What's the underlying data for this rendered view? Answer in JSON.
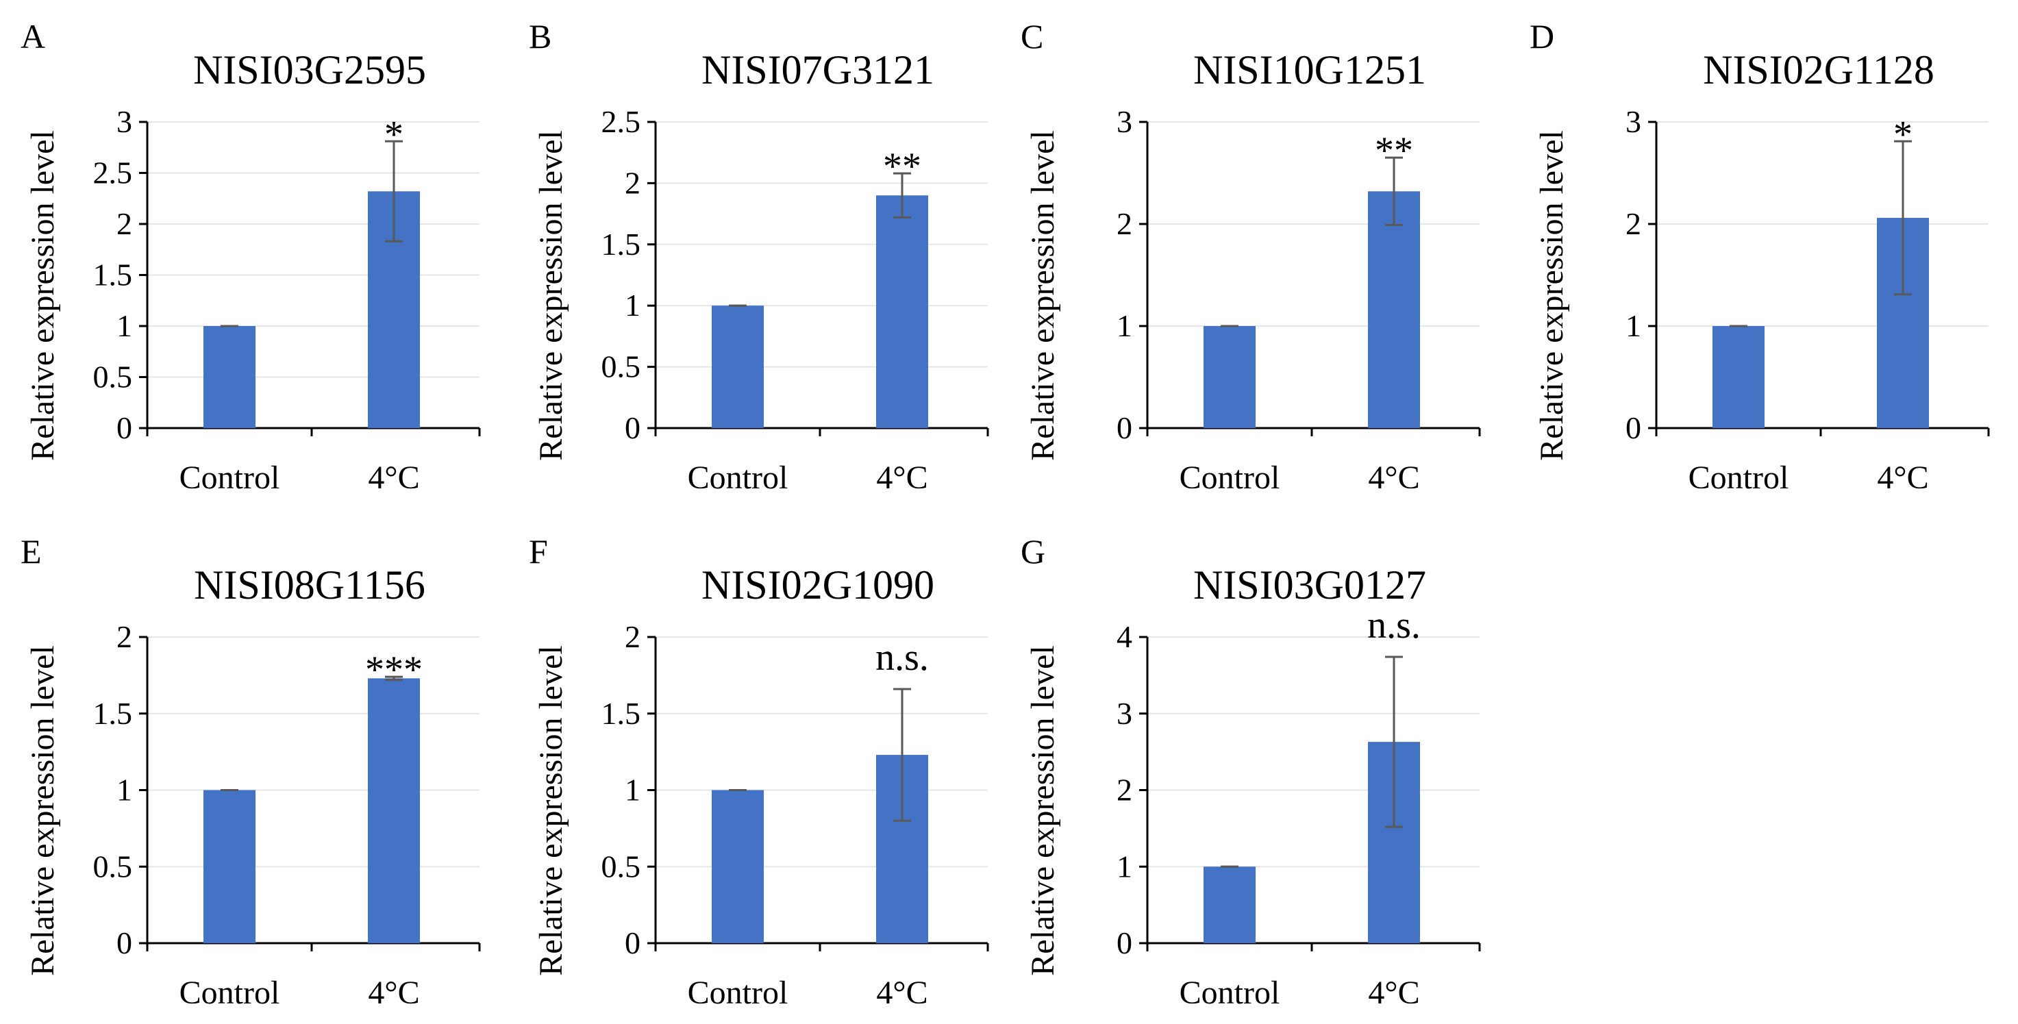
{
  "figure": {
    "y_axis_label": "Relative expression level",
    "colors": {
      "bar": "#4472C4",
      "error_bar": "#595959",
      "axis": "#000000",
      "grid": "#E6E6E6"
    }
  },
  "chart_data": [
    {
      "panel": "A",
      "type": "bar",
      "title": "NISI03G2595",
      "ylabel": "Relative expression level",
      "xlabel": "",
      "categories": [
        "Control",
        "4°C"
      ],
      "values": [
        1.0,
        2.32
      ],
      "errors": [
        0.0,
        0.49
      ],
      "ylim": [
        0,
        3
      ],
      "yticks": [
        0,
        0.5,
        1,
        1.5,
        2,
        2.5,
        3
      ],
      "yticklabels": [
        "0",
        "0.5",
        "1",
        "1.5",
        "2",
        "2.5",
        "3"
      ],
      "significance": "*",
      "grid": true
    },
    {
      "panel": "B",
      "type": "bar",
      "title": "NISI07G3121",
      "ylabel": "Relative expression level",
      "xlabel": "",
      "categories": [
        "Control",
        "4°C"
      ],
      "values": [
        1.0,
        1.9
      ],
      "errors": [
        0.0,
        0.18
      ],
      "ylim": [
        0,
        2.5
      ],
      "yticks": [
        0,
        0.5,
        1,
        1.5,
        2,
        2.5
      ],
      "yticklabels": [
        "0",
        "0.5",
        "1",
        "1.5",
        "2",
        "2.5"
      ],
      "significance": "**",
      "grid": true
    },
    {
      "panel": "C",
      "type": "bar",
      "title": "NISI10G1251",
      "ylabel": "Relative expression level",
      "xlabel": "",
      "categories": [
        "Control",
        "4°C"
      ],
      "values": [
        1.0,
        2.32
      ],
      "errors": [
        0.0,
        0.33
      ],
      "ylim": [
        0,
        3
      ],
      "yticks": [
        0,
        1,
        2,
        3
      ],
      "yticklabels": [
        "0",
        "1",
        "2",
        "3"
      ],
      "significance": "**",
      "grid": true
    },
    {
      "panel": "D",
      "type": "bar",
      "title": "NISI02G1128",
      "ylabel": "Relative expression level",
      "xlabel": "",
      "categories": [
        "Control",
        "4°C"
      ],
      "values": [
        1.0,
        2.06
      ],
      "errors": [
        0.0,
        0.75
      ],
      "ylim": [
        0,
        3
      ],
      "yticks": [
        0,
        1,
        2,
        3
      ],
      "yticklabels": [
        "0",
        "1",
        "2",
        "3"
      ],
      "significance": "*",
      "grid": true
    },
    {
      "panel": "E",
      "type": "bar",
      "title": "NISI08G1156",
      "ylabel": "Relative expression level",
      "xlabel": "",
      "categories": [
        "Control",
        "4°C"
      ],
      "values": [
        1.0,
        1.73
      ],
      "errors": [
        0.0,
        0.01
      ],
      "ylim": [
        0,
        2
      ],
      "yticks": [
        0,
        0.5,
        1,
        1.5,
        2
      ],
      "yticklabels": [
        "0",
        "0.5",
        "1",
        "1.5",
        "2"
      ],
      "significance": "***",
      "grid": true
    },
    {
      "panel": "F",
      "type": "bar",
      "title": "NISI02G1090",
      "ylabel": "Relative expression level",
      "xlabel": "",
      "categories": [
        "Control",
        "4°C"
      ],
      "values": [
        1.0,
        1.23
      ],
      "errors": [
        0.0,
        0.43
      ],
      "ylim": [
        0,
        2
      ],
      "yticks": [
        0,
        0.5,
        1,
        1.5,
        2
      ],
      "yticklabels": [
        "0",
        "0.5",
        "1",
        "1.5",
        "2"
      ],
      "significance": "n.s.",
      "grid": true
    },
    {
      "panel": "G",
      "type": "bar",
      "title": "NISI03G0127",
      "ylabel": "Relative expression level",
      "xlabel": "",
      "categories": [
        "Control",
        "4°C"
      ],
      "values": [
        1.0,
        2.63
      ],
      "errors": [
        0.0,
        1.11
      ],
      "ylim": [
        0,
        4
      ],
      "yticks": [
        0,
        1,
        2,
        3,
        4
      ],
      "yticklabels": [
        "0",
        "1",
        "2",
        "3",
        "4"
      ],
      "significance": "n.s.",
      "grid": true
    }
  ]
}
